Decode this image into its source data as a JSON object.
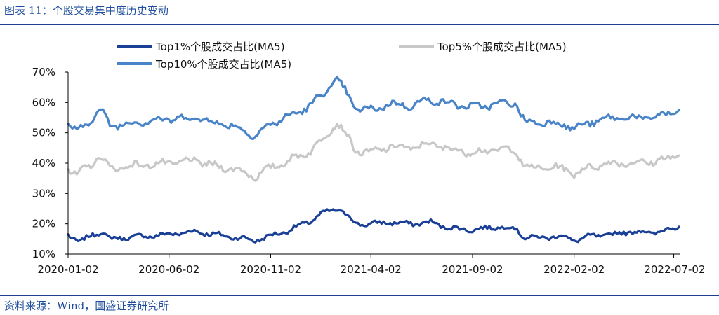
{
  "figure": {
    "title": "图表 11：个股交易集中度历史变动",
    "source": "资料来源：Wind，国盛证券研究所"
  },
  "chart_data": {
    "type": "line",
    "x_ticks": [
      "2020-01-02",
      "2020-06-02",
      "2020-11-02",
      "2021-04-02",
      "2021-09-02",
      "2022-02-02",
      "2022-07-02"
    ],
    "xlim": [
      "2020-01-02",
      "2022-07-12"
    ],
    "y_ticks": [
      "10%",
      "20%",
      "30%",
      "40%",
      "50%",
      "60%",
      "70%"
    ],
    "ylim": [
      10,
      70
    ],
    "y_unit": "%",
    "grid": false,
    "legend_position": "top",
    "series": [
      {
        "name": "Top1%个股成交占比(MA5)",
        "color": "#1a3f96",
        "points": [
          [
            "2020-01-02",
            16.5
          ],
          [
            "2020-01-20",
            14.0
          ],
          [
            "2020-02-05",
            16.0
          ],
          [
            "2020-02-20",
            17.5
          ],
          [
            "2020-03-05",
            15.0
          ],
          [
            "2020-04-01",
            15.5
          ],
          [
            "2020-05-01",
            16.0
          ],
          [
            "2020-06-02",
            16.5
          ],
          [
            "2020-07-10",
            17.5
          ],
          [
            "2020-08-10",
            16.5
          ],
          [
            "2020-09-10",
            15.5
          ],
          [
            "2020-10-10",
            14.5
          ],
          [
            "2020-11-02",
            16.0
          ],
          [
            "2020-12-01",
            18.0
          ],
          [
            "2021-01-01",
            21.0
          ],
          [
            "2021-01-20",
            23.5
          ],
          [
            "2021-02-10",
            25.0
          ],
          [
            "2021-02-25",
            23.0
          ],
          [
            "2021-03-10",
            20.0
          ],
          [
            "2021-04-02",
            20.0
          ],
          [
            "2021-05-01",
            20.5
          ],
          [
            "2021-06-01",
            20.0
          ],
          [
            "2021-07-01",
            20.5
          ],
          [
            "2021-08-01",
            18.5
          ],
          [
            "2021-09-02",
            18.0
          ],
          [
            "2021-10-10",
            19.0
          ],
          [
            "2021-11-05",
            18.5
          ],
          [
            "2021-11-20",
            15.5
          ],
          [
            "2021-12-20",
            15.5
          ],
          [
            "2022-01-15",
            16.0
          ],
          [
            "2022-02-02",
            14.5
          ],
          [
            "2022-03-01",
            16.0
          ],
          [
            "2022-04-01",
            16.5
          ],
          [
            "2022-05-01",
            17.5
          ],
          [
            "2022-06-01",
            17.0
          ],
          [
            "2022-07-10",
            19.0
          ]
        ]
      },
      {
        "name": "Top5%个股成交占比(MA5)",
        "color": "#c8c8c8",
        "points": [
          [
            "2020-01-02",
            38.0
          ],
          [
            "2020-01-15",
            36.0
          ],
          [
            "2020-02-05",
            39.5
          ],
          [
            "2020-02-20",
            42.5
          ],
          [
            "2020-03-05",
            38.0
          ],
          [
            "2020-04-01",
            39.0
          ],
          [
            "2020-05-01",
            39.5
          ],
          [
            "2020-06-02",
            40.0
          ],
          [
            "2020-07-10",
            41.0
          ],
          [
            "2020-08-10",
            39.0
          ],
          [
            "2020-09-10",
            38.0
          ],
          [
            "2020-10-10",
            35.5
          ],
          [
            "2020-11-02",
            38.5
          ],
          [
            "2020-12-01",
            41.0
          ],
          [
            "2021-01-01",
            44.0
          ],
          [
            "2021-01-20",
            48.0
          ],
          [
            "2021-02-10",
            53.5
          ],
          [
            "2021-02-25",
            49.0
          ],
          [
            "2021-03-10",
            44.0
          ],
          [
            "2021-04-02",
            43.5
          ],
          [
            "2021-05-01",
            45.5
          ],
          [
            "2021-06-01",
            45.0
          ],
          [
            "2021-07-01",
            46.5
          ],
          [
            "2021-08-01",
            44.5
          ],
          [
            "2021-09-02",
            43.5
          ],
          [
            "2021-10-10",
            44.5
          ],
          [
            "2021-11-05",
            44.5
          ],
          [
            "2021-11-20",
            38.5
          ],
          [
            "2021-12-20",
            38.5
          ],
          [
            "2022-01-15",
            38.5
          ],
          [
            "2022-02-02",
            36.5
          ],
          [
            "2022-03-01",
            39.0
          ],
          [
            "2022-04-01",
            40.0
          ],
          [
            "2022-05-01",
            40.0
          ],
          [
            "2022-06-01",
            40.5
          ],
          [
            "2022-07-10",
            42.5
          ]
        ]
      },
      {
        "name": "Top10%个股成交占比(MA5)",
        "color": "#4a84c8",
        "points": [
          [
            "2020-01-02",
            53.0
          ],
          [
            "2020-01-15",
            50.0
          ],
          [
            "2020-02-05",
            54.5
          ],
          [
            "2020-02-20",
            57.5
          ],
          [
            "2020-03-05",
            52.5
          ],
          [
            "2020-04-01",
            53.0
          ],
          [
            "2020-05-01",
            54.0
          ],
          [
            "2020-06-02",
            54.5
          ],
          [
            "2020-07-10",
            55.0
          ],
          [
            "2020-08-10",
            53.5
          ],
          [
            "2020-09-10",
            52.0
          ],
          [
            "2020-10-10",
            49.0
          ],
          [
            "2020-11-02",
            53.0
          ],
          [
            "2020-12-01",
            55.5
          ],
          [
            "2021-01-01",
            59.0
          ],
          [
            "2021-01-20",
            63.0
          ],
          [
            "2021-02-10",
            67.5
          ],
          [
            "2021-02-25",
            63.0
          ],
          [
            "2021-03-10",
            58.0
          ],
          [
            "2021-04-02",
            57.5
          ],
          [
            "2021-05-01",
            59.5
          ],
          [
            "2021-06-01",
            59.0
          ],
          [
            "2021-07-01",
            61.0
          ],
          [
            "2021-08-01",
            59.5
          ],
          [
            "2021-09-02",
            58.5
          ],
          [
            "2021-10-10",
            59.5
          ],
          [
            "2021-11-05",
            60.0
          ],
          [
            "2021-11-20",
            53.5
          ],
          [
            "2021-12-20",
            53.5
          ],
          [
            "2022-01-15",
            53.0
          ],
          [
            "2022-02-02",
            51.5
          ],
          [
            "2022-03-01",
            53.5
          ],
          [
            "2022-04-01",
            55.0
          ],
          [
            "2022-05-01",
            55.0
          ],
          [
            "2022-06-01",
            55.0
          ],
          [
            "2022-07-10",
            57.5
          ]
        ]
      }
    ]
  }
}
